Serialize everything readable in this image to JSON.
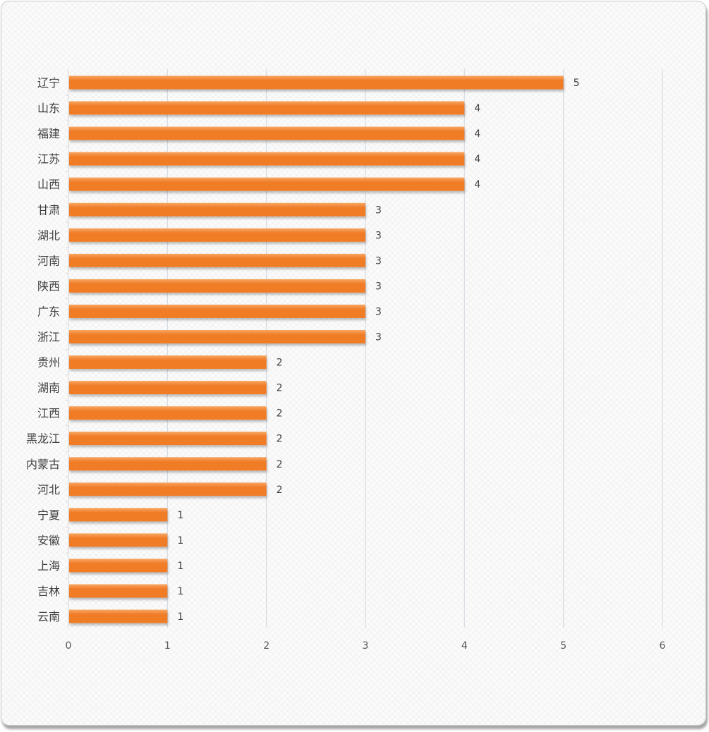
{
  "chart_data": {
    "type": "bar",
    "orientation": "horizontal",
    "title": "",
    "xlabel": "",
    "ylabel": "",
    "categories": [
      "辽宁",
      "山东",
      "福建",
      "江苏",
      "山西",
      "甘肃",
      "湖北",
      "河南",
      "陕西",
      "广东",
      "浙江",
      "贵州",
      "湖南",
      "江西",
      "黑龙江",
      "内蒙古",
      "河北",
      "宁夏",
      "安徽",
      "上海",
      "吉林",
      "云南"
    ],
    "values": [
      5,
      4,
      4,
      4,
      4,
      3,
      3,
      3,
      3,
      3,
      3,
      2,
      2,
      2,
      2,
      2,
      2,
      1,
      1,
      1,
      1,
      1
    ],
    "xlim": [
      0,
      6
    ],
    "xticks": [
      0,
      1,
      2,
      3,
      4,
      5,
      6
    ],
    "grid": true,
    "legend": "none",
    "data_labels": true,
    "bar_color": "#f07c28",
    "bar_color_light": "#f7a763",
    "grid_color": "#d6dbe3"
  }
}
